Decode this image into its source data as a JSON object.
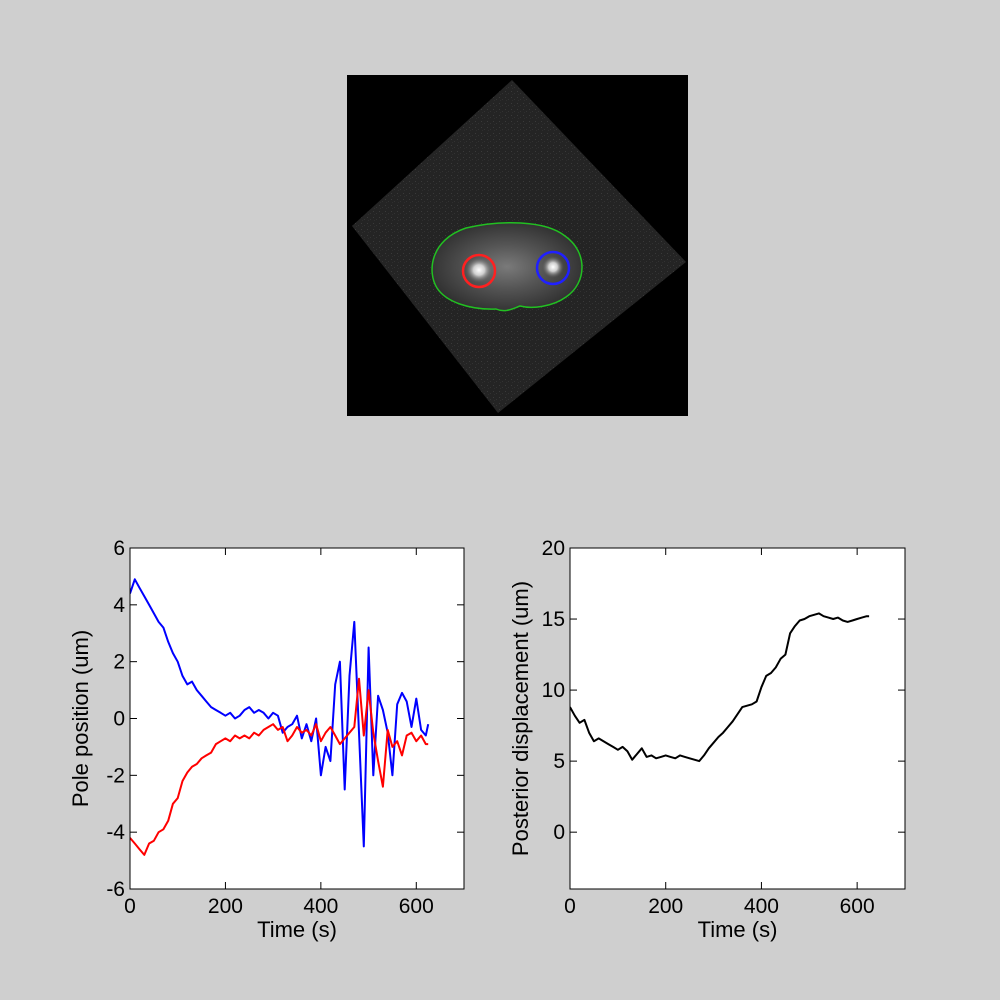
{
  "micrograph": {
    "description_colors": {
      "background": "#000000",
      "embryo_outline": "#22c022",
      "anterior_pole_marker": "#ff2020",
      "posterior_pole_marker": "#2020ff"
    }
  },
  "chart_data": [
    {
      "type": "line",
      "xlabel": "Time (s)",
      "ylabel": "Pole position (um)",
      "xlim": [
        0,
        700
      ],
      "ylim": [
        -6,
        6
      ],
      "xticks": [
        0,
        200,
        400,
        600
      ],
      "yticks": [
        -6,
        -4,
        -2,
        0,
        2,
        4,
        6
      ],
      "grid": false,
      "series": [
        {
          "color": "#0000ff",
          "x": [
            0,
            10,
            20,
            30,
            40,
            50,
            60,
            70,
            80,
            90,
            100,
            110,
            120,
            130,
            140,
            150,
            160,
            170,
            180,
            190,
            200,
            210,
            220,
            230,
            240,
            250,
            260,
            270,
            280,
            290,
            300,
            310,
            320,
            330,
            340,
            350,
            360,
            370,
            380,
            390,
            400,
            410,
            420,
            430,
            440,
            450,
            460,
            470,
            480,
            490,
            500,
            510,
            520,
            530,
            540,
            550,
            560,
            570,
            580,
            590,
            600,
            610,
            620,
            625
          ],
          "y": [
            4.4,
            4.9,
            4.6,
            4.3,
            4.0,
            3.7,
            3.4,
            3.2,
            2.7,
            2.3,
            2.0,
            1.5,
            1.2,
            1.3,
            1.0,
            0.8,
            0.6,
            0.4,
            0.3,
            0.2,
            0.1,
            0.2,
            0.0,
            0.1,
            0.3,
            0.4,
            0.2,
            0.3,
            0.2,
            0.0,
            0.2,
            0.1,
            -0.5,
            -0.3,
            -0.2,
            0.1,
            -0.7,
            -0.2,
            -0.8,
            0.0,
            -2.0,
            -1.0,
            -1.5,
            1.2,
            2.0,
            -2.5,
            1.5,
            3.4,
            -0.5,
            -4.5,
            2.5,
            -2.0,
            0.8,
            0.3,
            -0.5,
            -2.0,
            0.5,
            0.9,
            0.6,
            -0.3,
            0.7,
            -0.4,
            -0.6,
            -0.2
          ]
        },
        {
          "color": "#ff0000",
          "x": [
            0,
            10,
            20,
            30,
            40,
            50,
            60,
            70,
            80,
            90,
            100,
            110,
            120,
            130,
            140,
            150,
            160,
            170,
            180,
            190,
            200,
            210,
            220,
            230,
            240,
            250,
            260,
            270,
            280,
            290,
            300,
            310,
            320,
            330,
            340,
            350,
            360,
            370,
            380,
            390,
            400,
            410,
            420,
            430,
            440,
            450,
            460,
            470,
            480,
            490,
            500,
            510,
            520,
            530,
            540,
            550,
            560,
            570,
            580,
            590,
            600,
            610,
            620,
            625
          ],
          "y": [
            -4.2,
            -4.4,
            -4.6,
            -4.8,
            -4.4,
            -4.3,
            -4.0,
            -3.9,
            -3.6,
            -3.0,
            -2.8,
            -2.2,
            -1.9,
            -1.7,
            -1.6,
            -1.4,
            -1.3,
            -1.2,
            -0.9,
            -0.8,
            -0.7,
            -0.8,
            -0.6,
            -0.7,
            -0.6,
            -0.7,
            -0.5,
            -0.6,
            -0.4,
            -0.3,
            -0.2,
            -0.4,
            -0.3,
            -0.8,
            -0.6,
            -0.3,
            -0.5,
            -0.4,
            -0.6,
            -0.2,
            -0.8,
            -0.5,
            -0.3,
            -0.6,
            -0.9,
            -0.7,
            -0.5,
            -0.3,
            1.4,
            -0.6,
            1.0,
            -0.5,
            -1.5,
            -2.4,
            -0.4,
            -1.0,
            -0.8,
            -1.3,
            -0.6,
            -0.5,
            -0.8,
            -0.6,
            -0.9,
            -0.9
          ]
        }
      ]
    },
    {
      "type": "line",
      "xlabel": "Time (s)",
      "ylabel": "Posterior displacement (um)",
      "xlim": [
        0,
        700
      ],
      "ylim": [
        -4,
        20
      ],
      "xticks": [
        0,
        200,
        400,
        600
      ],
      "yticks": [
        0,
        5,
        10,
        15,
        20
      ],
      "grid": false,
      "series": [
        {
          "color": "#000000",
          "x": [
            0,
            10,
            20,
            30,
            40,
            50,
            60,
            70,
            80,
            90,
            100,
            110,
            120,
            130,
            140,
            150,
            160,
            170,
            180,
            190,
            200,
            210,
            220,
            230,
            240,
            250,
            260,
            270,
            280,
            290,
            300,
            310,
            320,
            330,
            340,
            350,
            360,
            370,
            380,
            390,
            400,
            410,
            420,
            430,
            440,
            450,
            460,
            470,
            480,
            490,
            500,
            510,
            520,
            530,
            540,
            550,
            560,
            570,
            580,
            590,
            600,
            610,
            620,
            625
          ],
          "y": [
            8.8,
            8.2,
            7.7,
            7.9,
            7.0,
            6.4,
            6.6,
            6.4,
            6.2,
            6.0,
            5.8,
            6.0,
            5.7,
            5.1,
            5.5,
            5.9,
            5.3,
            5.4,
            5.2,
            5.3,
            5.4,
            5.3,
            5.2,
            5.4,
            5.3,
            5.2,
            5.1,
            5.0,
            5.4,
            5.9,
            6.3,
            6.7,
            7.0,
            7.4,
            7.8,
            8.3,
            8.8,
            8.9,
            9.0,
            9.2,
            10.2,
            11.0,
            11.2,
            11.6,
            12.2,
            12.5,
            14.0,
            14.5,
            14.9,
            15.0,
            15.2,
            15.3,
            15.4,
            15.2,
            15.1,
            15.0,
            15.1,
            14.9,
            14.8,
            14.9,
            15.0,
            15.1,
            15.2,
            15.2
          ]
        }
      ]
    }
  ]
}
